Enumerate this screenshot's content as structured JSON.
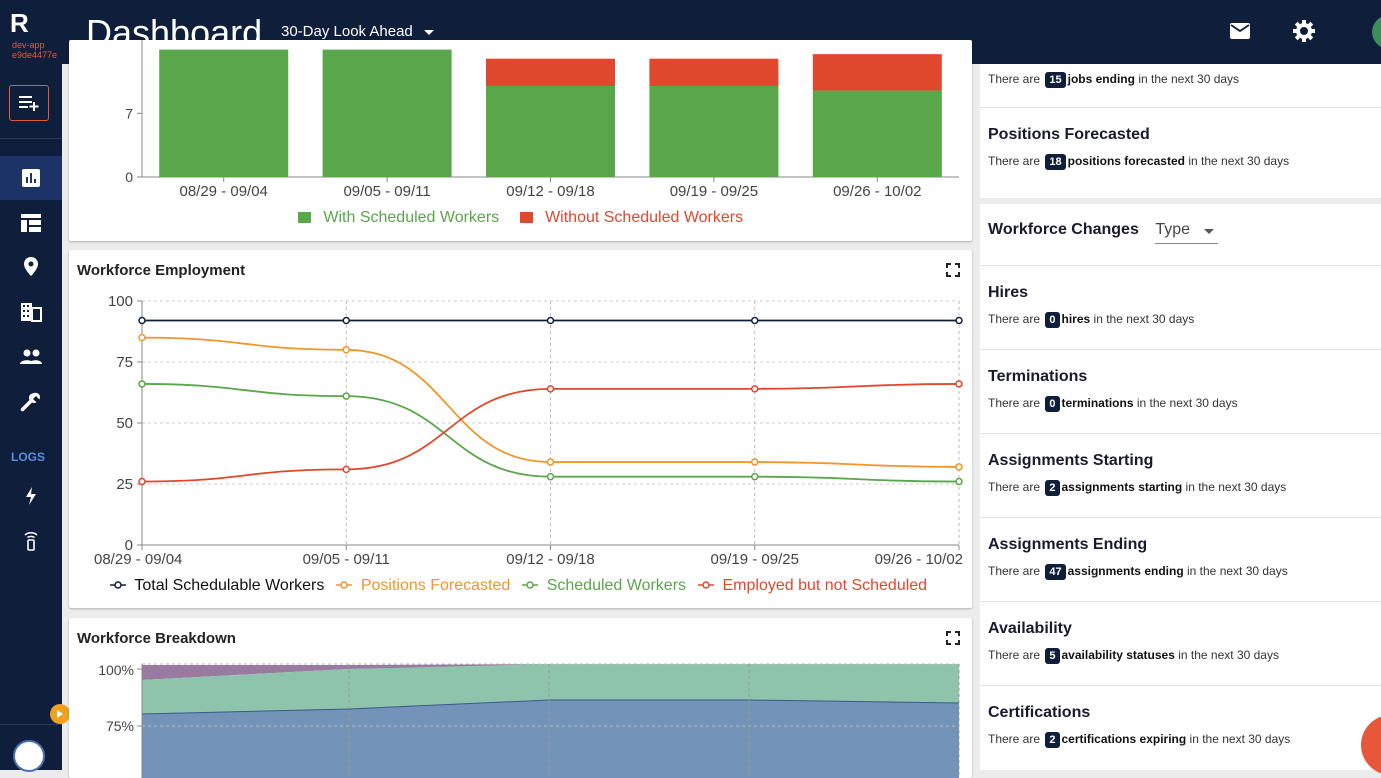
{
  "app": {
    "logo": "R",
    "env_line1": "dev-app",
    "env_line2": "e9de4477e"
  },
  "header": {
    "title": "Dashboard",
    "view_select": "30-Day Look Ahead"
  },
  "sidebar": {
    "nav_items": [
      "chart-icon",
      "table-icon",
      "location-icon",
      "building-icon",
      "people-icon",
      "wrench-icon"
    ],
    "logs_label": "LOGS",
    "log_items": [
      "lightning-icon",
      "wifi-tag-icon"
    ]
  },
  "colors": {
    "navy": "#0f1e3a",
    "green": "#5aa64a",
    "red": "#e0482e",
    "orange": "#f0962a",
    "accent": "#e8573a"
  },
  "top_chart": {
    "legend": {
      "with": "With Scheduled Workers",
      "without": "Without Scheduled Workers"
    },
    "chart_data": {
      "type": "bar",
      "categories": [
        "08/29 - 09/04",
        "09/05 - 09/11",
        "09/12 - 09/18",
        "09/19 - 09/25",
        "09/26 - 10/02"
      ],
      "series": [
        {
          "name": "With Scheduled Workers",
          "values": [
            14,
            14,
            10,
            10,
            9.5
          ]
        },
        {
          "name": "Without Scheduled Workers",
          "values": [
            0,
            0,
            3,
            3,
            4
          ]
        }
      ],
      "ytick_labels": [
        "0",
        "7"
      ],
      "ylim": [
        0,
        14
      ]
    }
  },
  "employment_chart": {
    "title": "Workforce Employment",
    "chart_data": {
      "type": "line",
      "categories": [
        "08/29 - 09/04",
        "09/05 - 09/11",
        "09/12 - 09/18",
        "09/19 - 09/25",
        "09/26 - 10/02"
      ],
      "series": [
        {
          "name": "Total Schedulable Workers",
          "values": [
            92,
            92,
            92,
            92,
            92
          ],
          "color": "#0f1e3a"
        },
        {
          "name": "Positions Forecasted",
          "values": [
            85,
            80,
            34,
            34,
            32
          ],
          "color": "#f0962a"
        },
        {
          "name": "Scheduled Workers",
          "values": [
            66,
            61,
            28,
            28,
            26
          ],
          "color": "#5aa64a"
        },
        {
          "name": "Employed but not Scheduled",
          "values": [
            26,
            31,
            64,
            64,
            66
          ],
          "color": "#e0482e"
        }
      ],
      "ytick_labels": [
        "0",
        "25",
        "50",
        "75",
        "100"
      ],
      "ylim": [
        0,
        100
      ]
    }
  },
  "breakdown_chart": {
    "title": "Workforce Breakdown",
    "chart_data": {
      "type": "area",
      "ytick_labels": [
        "75%",
        "100%"
      ]
    }
  },
  "right_panel": {
    "jobs_ending": {
      "prefix": "There are",
      "count": "15",
      "bold": "jobs ending",
      "suffix": "in the next 30 days"
    },
    "positions": {
      "title": "Positions Forecasted",
      "prefix": "There are",
      "count": "18",
      "bold": "positions forecasted",
      "suffix": "in the next 30 days"
    },
    "workforce_changes": {
      "title": "Workforce Changes",
      "type_select": "Type"
    },
    "items": [
      {
        "title": "Hires",
        "prefix": "There are",
        "count": "0",
        "bold": "hires",
        "suffix": "in the next 30 days"
      },
      {
        "title": "Terminations",
        "prefix": "There are",
        "count": "0",
        "bold": "terminations",
        "suffix": "in the next 30 days"
      },
      {
        "title": "Assignments Starting",
        "prefix": "There are",
        "count": "2",
        "bold": "assignments starting",
        "suffix": "in the next 30 days"
      },
      {
        "title": "Assignments Ending",
        "prefix": "There are",
        "count": "47",
        "bold": "assignments ending",
        "suffix": "in the next 30 days"
      },
      {
        "title": "Availability",
        "prefix": "There are",
        "count": "5",
        "bold": "availability statuses",
        "suffix": "in the next 30 days"
      },
      {
        "title": "Certifications",
        "prefix": "There are",
        "count": "2",
        "bold": "certifications expiring",
        "suffix": "in the next 30 days"
      }
    ]
  }
}
